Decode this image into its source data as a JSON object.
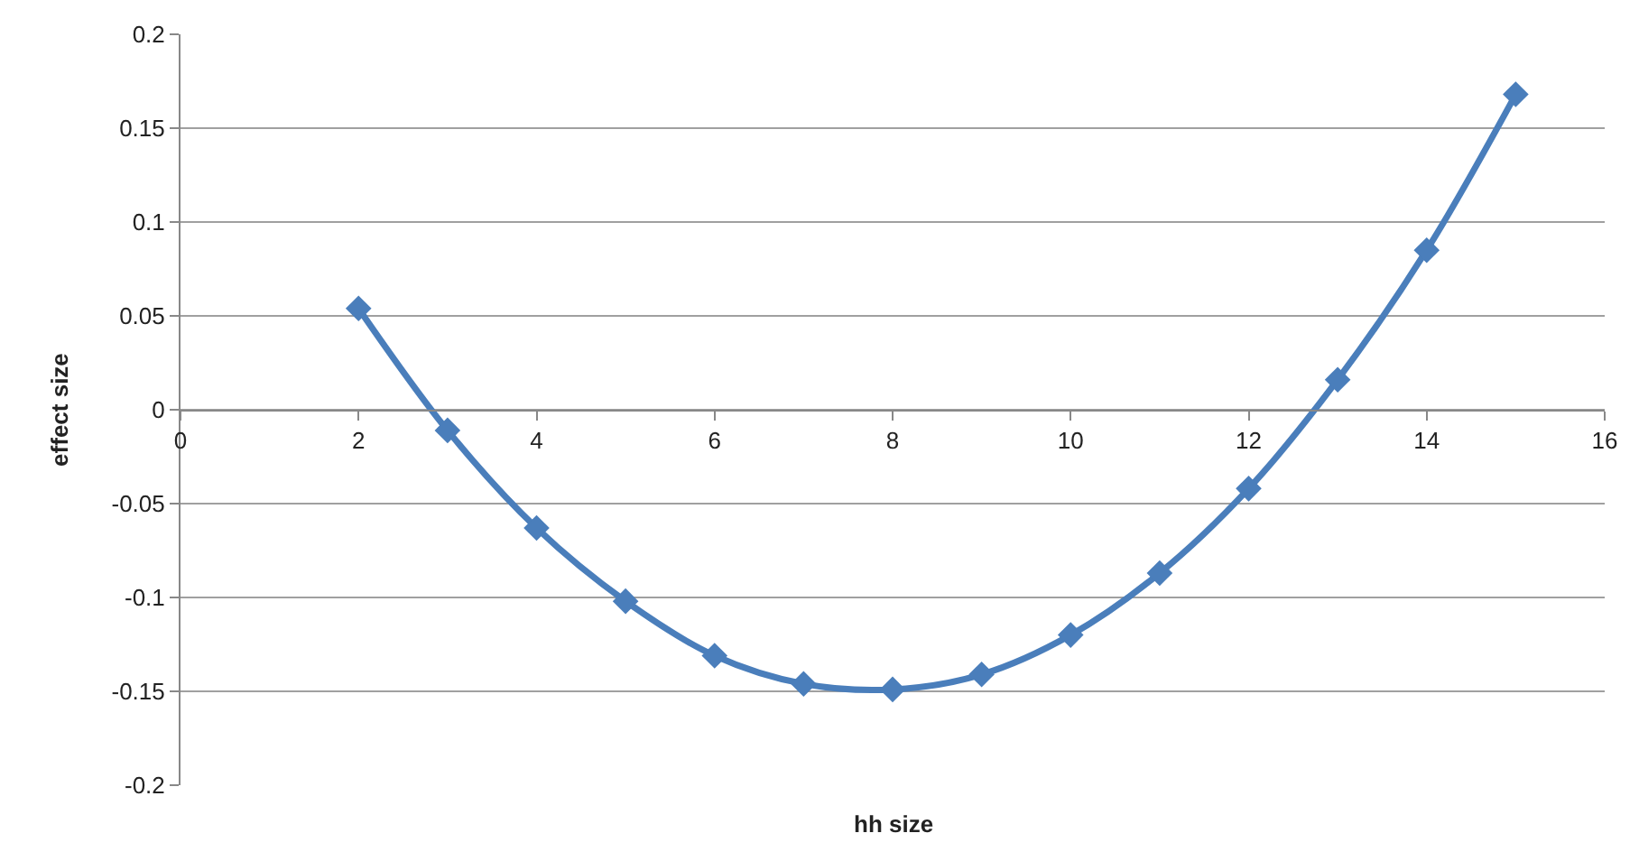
{
  "chart_data": {
    "type": "line",
    "xlabel": "hh size",
    "ylabel": "effect size",
    "x": [
      2,
      3,
      4,
      5,
      6,
      7,
      8,
      9,
      10,
      11,
      12,
      13,
      14,
      15
    ],
    "series": [
      {
        "color": "#4a7ebb",
        "values": [
          0.054,
          -0.011,
          -0.063,
          -0.102,
          -0.131,
          -0.146,
          -0.149,
          -0.141,
          -0.12,
          -0.087,
          -0.042,
          0.016,
          0.085,
          0.168
        ]
      }
    ],
    "xlim": [
      0,
      16
    ],
    "xticks": [
      0,
      2,
      4,
      6,
      8,
      10,
      12,
      14,
      16
    ],
    "ylim": [
      -0.2,
      0.2
    ],
    "yticks": [
      -0.2,
      -0.15,
      -0.1,
      -0.05,
      0,
      0.05,
      0.1,
      0.15,
      0.2
    ],
    "grid": "y",
    "marker": "diamond",
    "line_style": "solid"
  }
}
